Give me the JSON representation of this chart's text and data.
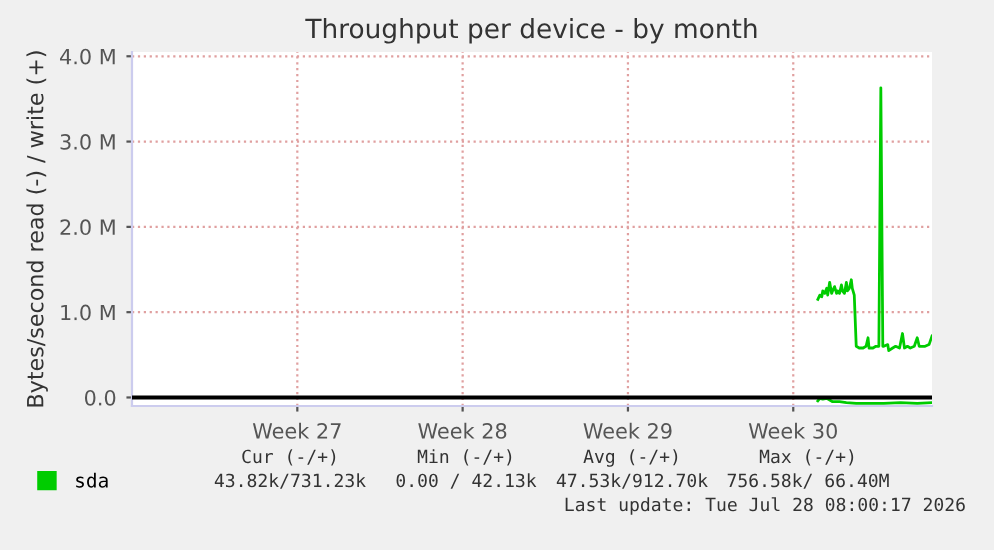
{
  "chart_data": {
    "type": "line",
    "title": "Throughput per device - by month",
    "ylabel": "Bytes/second read (-) / write (+)",
    "xlim": [
      "2026-06-24T11:00",
      "2026-07-28T08:00"
    ],
    "xticks": [
      {
        "value": "2026-07-01T11:00",
        "label": "Week 27"
      },
      {
        "value": "2026-07-08T11:00",
        "label": "Week 28"
      },
      {
        "value": "2026-07-15T11:00",
        "label": "Week 29"
      },
      {
        "value": "2026-07-22T11:00",
        "label": "Week 30"
      }
    ],
    "ylim": [
      -0.1,
      4.05
    ],
    "yticks": [
      {
        "value": 0,
        "label": "0.0"
      },
      {
        "value": 1,
        "label": "1.0 M"
      },
      {
        "value": 2,
        "label": "2.0 M"
      },
      {
        "value": 3,
        "label": "3.0 M"
      },
      {
        "value": 4,
        "label": "4.0 M"
      }
    ],
    "grid": true,
    "legend": "bottom",
    "marker": "none",
    "line_style": "solid",
    "ref_lines": [
      {
        "axis": "y",
        "value": 0,
        "color": "#000000"
      }
    ],
    "series": [
      {
        "name": "sda",
        "color": "#00cc00",
        "x": [
          "2026-07-23T12:00",
          "2026-07-23T14:00",
          "2026-07-23T16:00",
          "2026-07-23T17:00",
          "2026-07-23T19:00",
          "2026-07-23T21:00",
          "2026-07-23T22:00",
          "2026-07-24T00:00",
          "2026-07-24T02:00",
          "2026-07-24T03:00",
          "2026-07-24T05:00",
          "2026-07-24T07:00",
          "2026-07-24T08:00",
          "2026-07-24T10:00",
          "2026-07-24T12:00",
          "2026-07-24T13:00",
          "2026-07-24T15:00",
          "2026-07-24T17:00",
          "2026-07-24T18:00",
          "2026-07-24T20:00",
          "2026-07-24T22:00",
          "2026-07-24T23:00",
          "2026-07-25T01:00",
          "2026-07-25T03:00",
          "2026-07-25T06:00",
          "2026-07-25T10:00",
          "2026-07-25T13:00",
          "2026-07-25T15:00",
          "2026-07-25T16:00",
          "2026-07-25T20:00",
          "2026-07-25T23:00",
          "2026-07-26T02:00",
          "2026-07-26T04:00",
          "2026-07-26T06:00",
          "2026-07-26T07:00",
          "2026-07-26T11:00",
          "2026-07-26T12:00",
          "2026-07-26T16:00",
          "2026-07-26T19:00",
          "2026-07-26T23:00",
          "2026-07-27T02:00",
          "2026-07-27T04:00",
          "2026-07-27T07:00",
          "2026-07-27T10:00",
          "2026-07-27T14:00",
          "2026-07-27T17:00",
          "2026-07-27T19:00",
          "2026-07-27T22:00",
          "2026-07-28T01:00",
          "2026-07-28T05:00",
          "2026-07-28T08:00"
        ],
        "values": [
          1.15,
          1.2,
          1.18,
          1.25,
          1.22,
          1.28,
          1.2,
          1.35,
          1.22,
          1.25,
          1.3,
          1.22,
          1.25,
          1.22,
          1.32,
          1.25,
          1.22,
          1.35,
          1.25,
          1.28,
          1.38,
          1.28,
          1.2,
          0.6,
          0.58,
          0.58,
          0.6,
          0.7,
          0.58,
          0.58,
          0.6,
          0.6,
          3.63,
          0.6,
          0.6,
          0.62,
          0.55,
          0.58,
          0.6,
          0.58,
          0.75,
          0.58,
          0.6,
          0.58,
          0.6,
          0.7,
          0.6,
          0.6,
          0.6,
          0.62,
          0.72
        ]
      },
      {
        "color": "#00cc00",
        "x": [
          "2026-07-23T12:00",
          "2026-07-23T14:00",
          "2026-07-23T17:00",
          "2026-07-23T21:00",
          "2026-07-24T00:00",
          "2026-07-24T03:00",
          "2026-07-24T10:00",
          "2026-07-24T17:00",
          "2026-07-25T03:00",
          "2026-07-25T15:00",
          "2026-07-26T07:00",
          "2026-07-27T00:00",
          "2026-07-27T17:00",
          "2026-07-28T08:00"
        ],
        "values": [
          -0.04,
          -0.01,
          -0.02,
          -0.01,
          -0.03,
          -0.05,
          -0.05,
          -0.06,
          -0.07,
          -0.07,
          -0.07,
          -0.06,
          -0.07,
          -0.06
        ]
      }
    ],
    "annotations": [
      "Cur (-/+)",
      "Min (-/+)",
      "Avg (-/+)",
      "Max (-/+)",
      "43.82k/731.23k",
      "0.00 / 42.13k",
      "47.53k/912.70k",
      "756.58k/ 66.40M",
      "Last update: Tue Jul 28 08:00:17 2026"
    ]
  }
}
